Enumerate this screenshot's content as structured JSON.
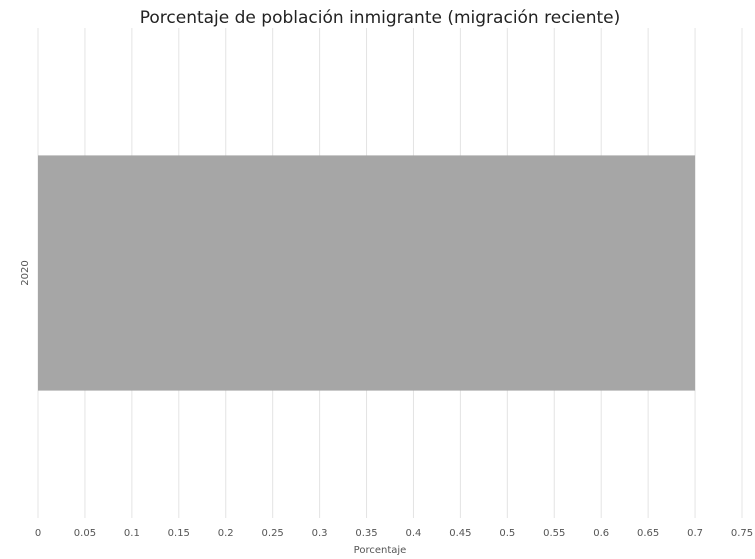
{
  "chart_data": {
    "type": "hbar",
    "title": "Porcentaje de población inmigrante (migración reciente)",
    "x_label": "Porcentaje",
    "categories": [
      "2020"
    ],
    "values": [
      0.7
    ],
    "color": "#a6a6a6",
    "xlim": [
      0,
      0.75
    ],
    "xticks": [
      0,
      0.05,
      0.1,
      0.15,
      0.2,
      0.25,
      0.3,
      0.35,
      0.4,
      0.45,
      0.5,
      0.55,
      0.6,
      0.65,
      0.7,
      0.75
    ],
    "grid": true
  }
}
